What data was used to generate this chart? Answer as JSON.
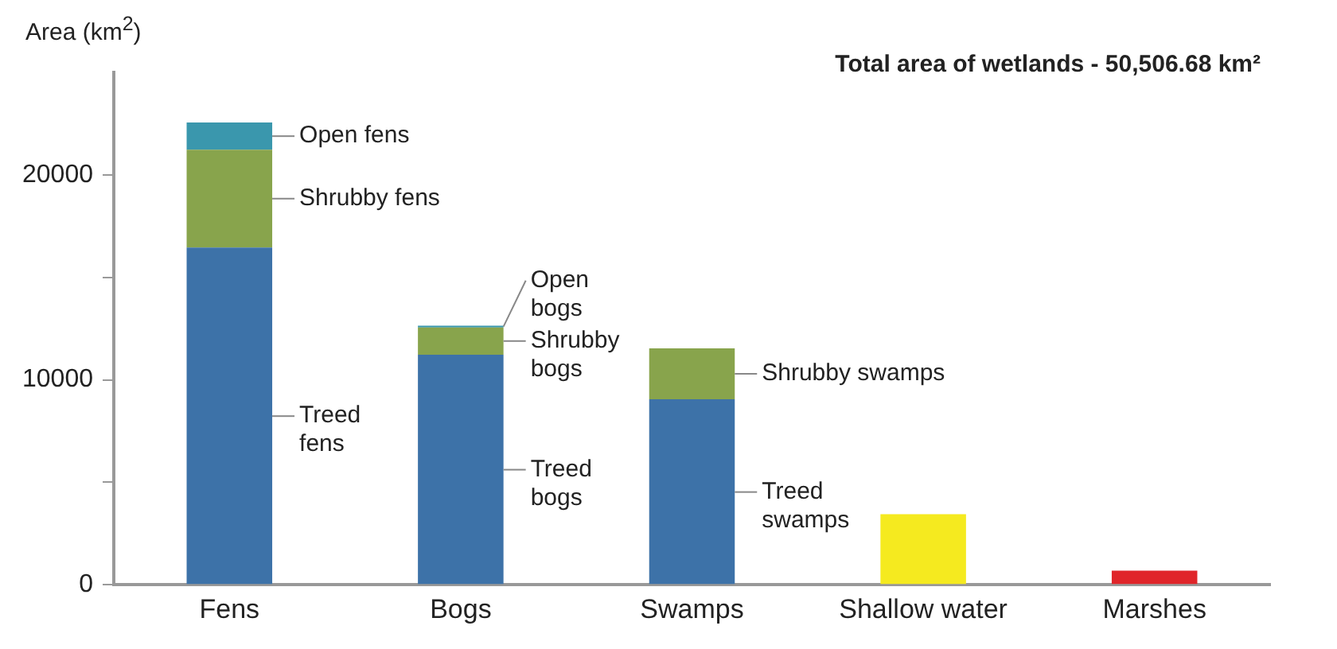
{
  "chart_data": {
    "type": "bar",
    "title": "Total area of wetlands - 50,506.68 km²",
    "ylabel": "Area (km$^{2}$)",
    "categories": [
      "Fens",
      "Bogs",
      "Swamps",
      "Shallow water",
      "Marshes"
    ],
    "stacked": true,
    "series": [
      {
        "name": "Treed fens",
        "color": "#3d72a8",
        "values": [
          16460,
          null,
          null,
          null,
          null
        ]
      },
      {
        "name": "Shrubby fens",
        "color": "#88a44c",
        "values": [
          4770,
          null,
          null,
          null,
          null
        ]
      },
      {
        "name": "Open fens",
        "color": "#3a97ad",
        "values": [
          1330,
          null,
          null,
          null,
          null
        ]
      },
      {
        "name": "Treed bogs",
        "color": "#3d72a8",
        "values": [
          null,
          11230,
          null,
          null,
          null
        ]
      },
      {
        "name": "Shrubby bogs",
        "color": "#88a44c",
        "values": [
          null,
          1330,
          null,
          null,
          null
        ]
      },
      {
        "name": "Open bogs",
        "color": "#3a97ad",
        "values": [
          null,
          80,
          null,
          null,
          null
        ]
      },
      {
        "name": "Treed swamps",
        "color": "#3d72a8",
        "values": [
          null,
          null,
          9050,
          null,
          null
        ]
      },
      {
        "name": "Shrubby swamps",
        "color": "#88a44c",
        "values": [
          null,
          null,
          2490,
          null,
          null
        ]
      },
      {
        "color": "#f5ea1f",
        "values": [
          null,
          null,
          null,
          3440,
          null
        ]
      },
      {
        "color": "#e0252a",
        "values": [
          null,
          null,
          null,
          null,
          690
        ]
      }
    ],
    "ylim": [
      0,
      25000
    ],
    "yticks": [
      0,
      {
        "value": 5000,
        "label": null
      },
      10000,
      {
        "value": 15000,
        "label": null
      },
      20000
    ],
    "grid": false,
    "legend": false
  }
}
